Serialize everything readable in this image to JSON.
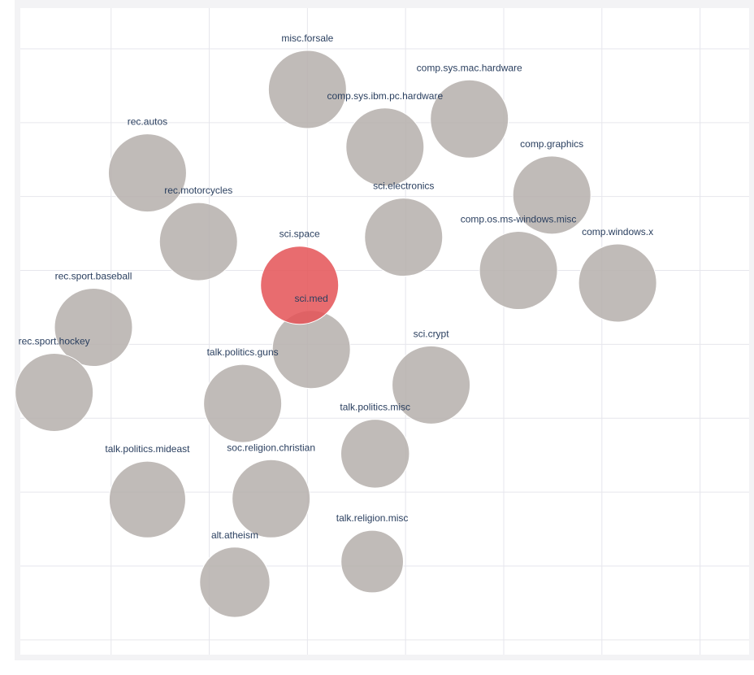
{
  "chart_data": {
    "type": "scatter",
    "title": "",
    "xlabel": "",
    "ylabel": "",
    "grid": true,
    "xlim": [
      -2.925,
      4.5
    ],
    "ylim": [
      -3.2,
      5.55
    ],
    "colors": {
      "default_marker": "#b5afab",
      "highlight_marker": "#e45256",
      "grid": "#e6e6ec",
      "plot_bg": "#ffffff",
      "frame_bg": "#f3f3f5",
      "label": "#2a3f5f"
    },
    "points": [
      {
        "label": "misc.forsale",
        "x": 0.0,
        "y": 4.45,
        "size": 1.0,
        "highlighted": false
      },
      {
        "label": "comp.sys.mac.hardware",
        "x": 1.65,
        "y": 4.05,
        "size": 1.0,
        "highlighted": false
      },
      {
        "label": "comp.sys.ibm.pc.hardware",
        "x": 0.79,
        "y": 3.67,
        "size": 1.0,
        "highlighted": false
      },
      {
        "label": "rec.autos",
        "x": -1.63,
        "y": 3.32,
        "size": 1.0,
        "highlighted": false
      },
      {
        "label": "comp.graphics",
        "x": 2.49,
        "y": 3.02,
        "size": 1.0,
        "highlighted": false
      },
      {
        "label": "rec.motorcycles",
        "x": -1.11,
        "y": 2.39,
        "size": 1.0,
        "highlighted": false
      },
      {
        "label": "sci.electronics",
        "x": 0.98,
        "y": 2.45,
        "size": 1.0,
        "highlighted": false
      },
      {
        "label": "comp.os.ms-windows.misc",
        "x": 2.15,
        "y": 2.0,
        "size": 1.0,
        "highlighted": false
      },
      {
        "label": "comp.windows.x",
        "x": 3.16,
        "y": 1.83,
        "size": 1.0,
        "highlighted": false
      },
      {
        "label": "sci.space",
        "x": -0.08,
        "y": 1.8,
        "size": 1.0,
        "highlighted": true
      },
      {
        "label": "rec.sport.baseball",
        "x": -2.18,
        "y": 1.23,
        "size": 1.0,
        "highlighted": false
      },
      {
        "label": "sci.med",
        "x": 0.04,
        "y": 0.93,
        "size": 1.0,
        "highlighted": false
      },
      {
        "label": "rec.sport.hockey",
        "x": -2.58,
        "y": 0.35,
        "size": 1.0,
        "highlighted": false
      },
      {
        "label": "sci.crypt",
        "x": 1.26,
        "y": 0.45,
        "size": 1.0,
        "highlighted": false
      },
      {
        "label": "talk.politics.guns",
        "x": -0.66,
        "y": 0.2,
        "size": 1.0,
        "highlighted": false
      },
      {
        "label": "talk.politics.misc",
        "x": 0.69,
        "y": -0.48,
        "size": 0.88,
        "highlighted": false
      },
      {
        "label": "talk.politics.mideast",
        "x": -1.63,
        "y": -1.1,
        "size": 0.98,
        "highlighted": false
      },
      {
        "label": "soc.religion.christian",
        "x": -0.37,
        "y": -1.09,
        "size": 1.0,
        "highlighted": false
      },
      {
        "label": "talk.religion.misc",
        "x": 0.66,
        "y": -1.94,
        "size": 0.8,
        "highlighted": false
      },
      {
        "label": "alt.atheism",
        "x": -0.74,
        "y": -2.22,
        "size": 0.9,
        "highlighted": false
      }
    ]
  }
}
